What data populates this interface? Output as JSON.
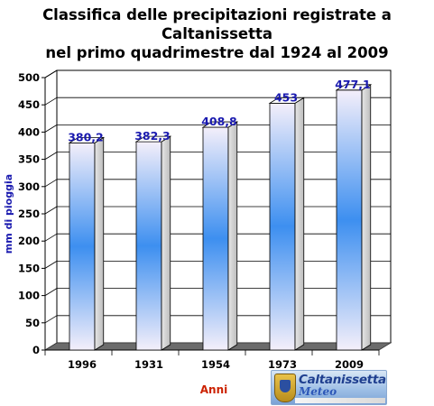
{
  "title_lines": [
    "Classifica delle precipitazioni registrate a Caltanissetta",
    "nel primo quadrimestre dal 1924 al 2009"
  ],
  "chart_data": {
    "type": "bar",
    "categories": [
      "1996",
      "1931",
      "1954",
      "1973",
      "2009"
    ],
    "values": [
      380.2,
      382.3,
      408.8,
      453,
      477.1
    ],
    "data_labels": [
      "380,2",
      "382,3",
      "408,8",
      "453",
      "477,1"
    ],
    "title": "Classifica delle precipitazioni registrate a Caltanissetta nel primo quadrimestre dal 1924 al 2009",
    "xlabel": "Anni",
    "ylabel": "mm di pioggia",
    "ylim": [
      0,
      500
    ],
    "yticks": [
      0,
      50,
      100,
      150,
      200,
      250,
      300,
      350,
      400,
      450,
      500
    ],
    "grid": true,
    "bar_style": "3d",
    "colors": {
      "bar_top": "#f4effa",
      "bar_mid": "#3d8ff0",
      "bar_side": "#d8d8d8",
      "data_label": "#1a1aaf",
      "ylabel": "#1a1aaf",
      "xlabel": "#cc2200",
      "floor": "#6b6b6b"
    }
  },
  "logo": {
    "line1": "Caltanissetta",
    "line2": "Meteo"
  }
}
